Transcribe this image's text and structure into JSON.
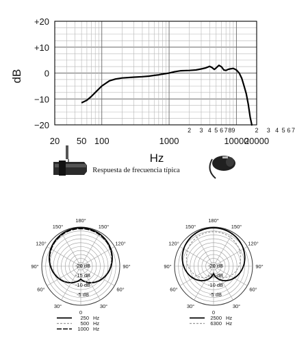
{
  "chart_data": [
    {
      "type": "line",
      "title": "",
      "caption": "Respuesta de frecuencia típica",
      "xlabel": "Hz",
      "ylabel": "dB",
      "xscale": "log",
      "xlim": [
        20,
        20000
      ],
      "ylim": [
        -20,
        20
      ],
      "grid": true,
      "legend": "none",
      "y_ticks": [
        "+20",
        "+10",
        "0",
        "−10",
        "−20"
      ],
      "y_tick_values": [
        20,
        10,
        0,
        -10,
        -20
      ],
      "x_ticks": [
        "20",
        "50",
        "100",
        "1000",
        "10000",
        "20000"
      ],
      "x_tick_values": [
        20,
        50,
        100,
        1000,
        10000,
        20000
      ],
      "minor_tick_labels": [
        "2",
        "3",
        "4",
        "5",
        "6",
        "7",
        "8",
        "9"
      ],
      "minor_tick_label_decades": [
        1000,
        10000
      ],
      "series": [
        {
          "color": "#000000",
          "x": [
            50,
            60,
            70,
            80,
            100,
            130,
            160,
            200,
            300,
            400,
            500,
            600,
            700,
            800,
            1000,
            1200,
            1500,
            2000,
            2500,
            3000,
            3500,
            4000,
            4300,
            4700,
            5000,
            5500,
            6000,
            6500,
            7000,
            7500,
            8000,
            9000,
            10000,
            11000,
            12000,
            13000,
            14000,
            15000,
            16000,
            17000
          ],
          "y": [
            -11.5,
            -10.5,
            -9,
            -7.5,
            -5,
            -3,
            -2.3,
            -1.9,
            -1.6,
            -1.4,
            -1.2,
            -0.9,
            -0.7,
            -0.4,
            0,
            0.5,
            0.9,
            1,
            1.2,
            1.6,
            2,
            2.6,
            2.2,
            1.4,
            2,
            3,
            2.4,
            1.2,
            1,
            1.4,
            1.6,
            1.8,
            1.2,
            0,
            -2,
            -5,
            -8,
            -12,
            -17,
            -21
          ]
        }
      ]
    },
    {
      "type": "polar",
      "angle_labels": [
        "180°",
        "150°",
        "150°",
        "120°",
        "120°",
        "90°",
        "90°",
        "60°",
        "60°",
        "30°",
        "30°",
        "0"
      ],
      "radial_labels": [
        "-20 dB",
        "-15 dB",
        "-10 dB",
        "-5 dB"
      ],
      "series": [
        {
          "name": "250 Hz",
          "style": "solid",
          "color": "#000000"
        },
        {
          "name": "500 Hz",
          "style": "dashed",
          "color": "#999999"
        },
        {
          "name": "1000 Hz",
          "style": "long-dash",
          "color": "#000000"
        }
      ]
    },
    {
      "type": "polar",
      "angle_labels": [
        "180°",
        "150°",
        "150°",
        "120°",
        "120°",
        "90°",
        "90°",
        "60°",
        "60°",
        "30°",
        "30°",
        "0"
      ],
      "radial_labels": [
        "-20 dB",
        "-15 dB",
        "-10 dB",
        "-5 dB"
      ],
      "series": [
        {
          "name": "2500 Hz",
          "style": "solid",
          "color": "#000000"
        },
        {
          "name": "6300 Hz",
          "style": "dashed",
          "color": "#999999"
        }
      ]
    }
  ]
}
